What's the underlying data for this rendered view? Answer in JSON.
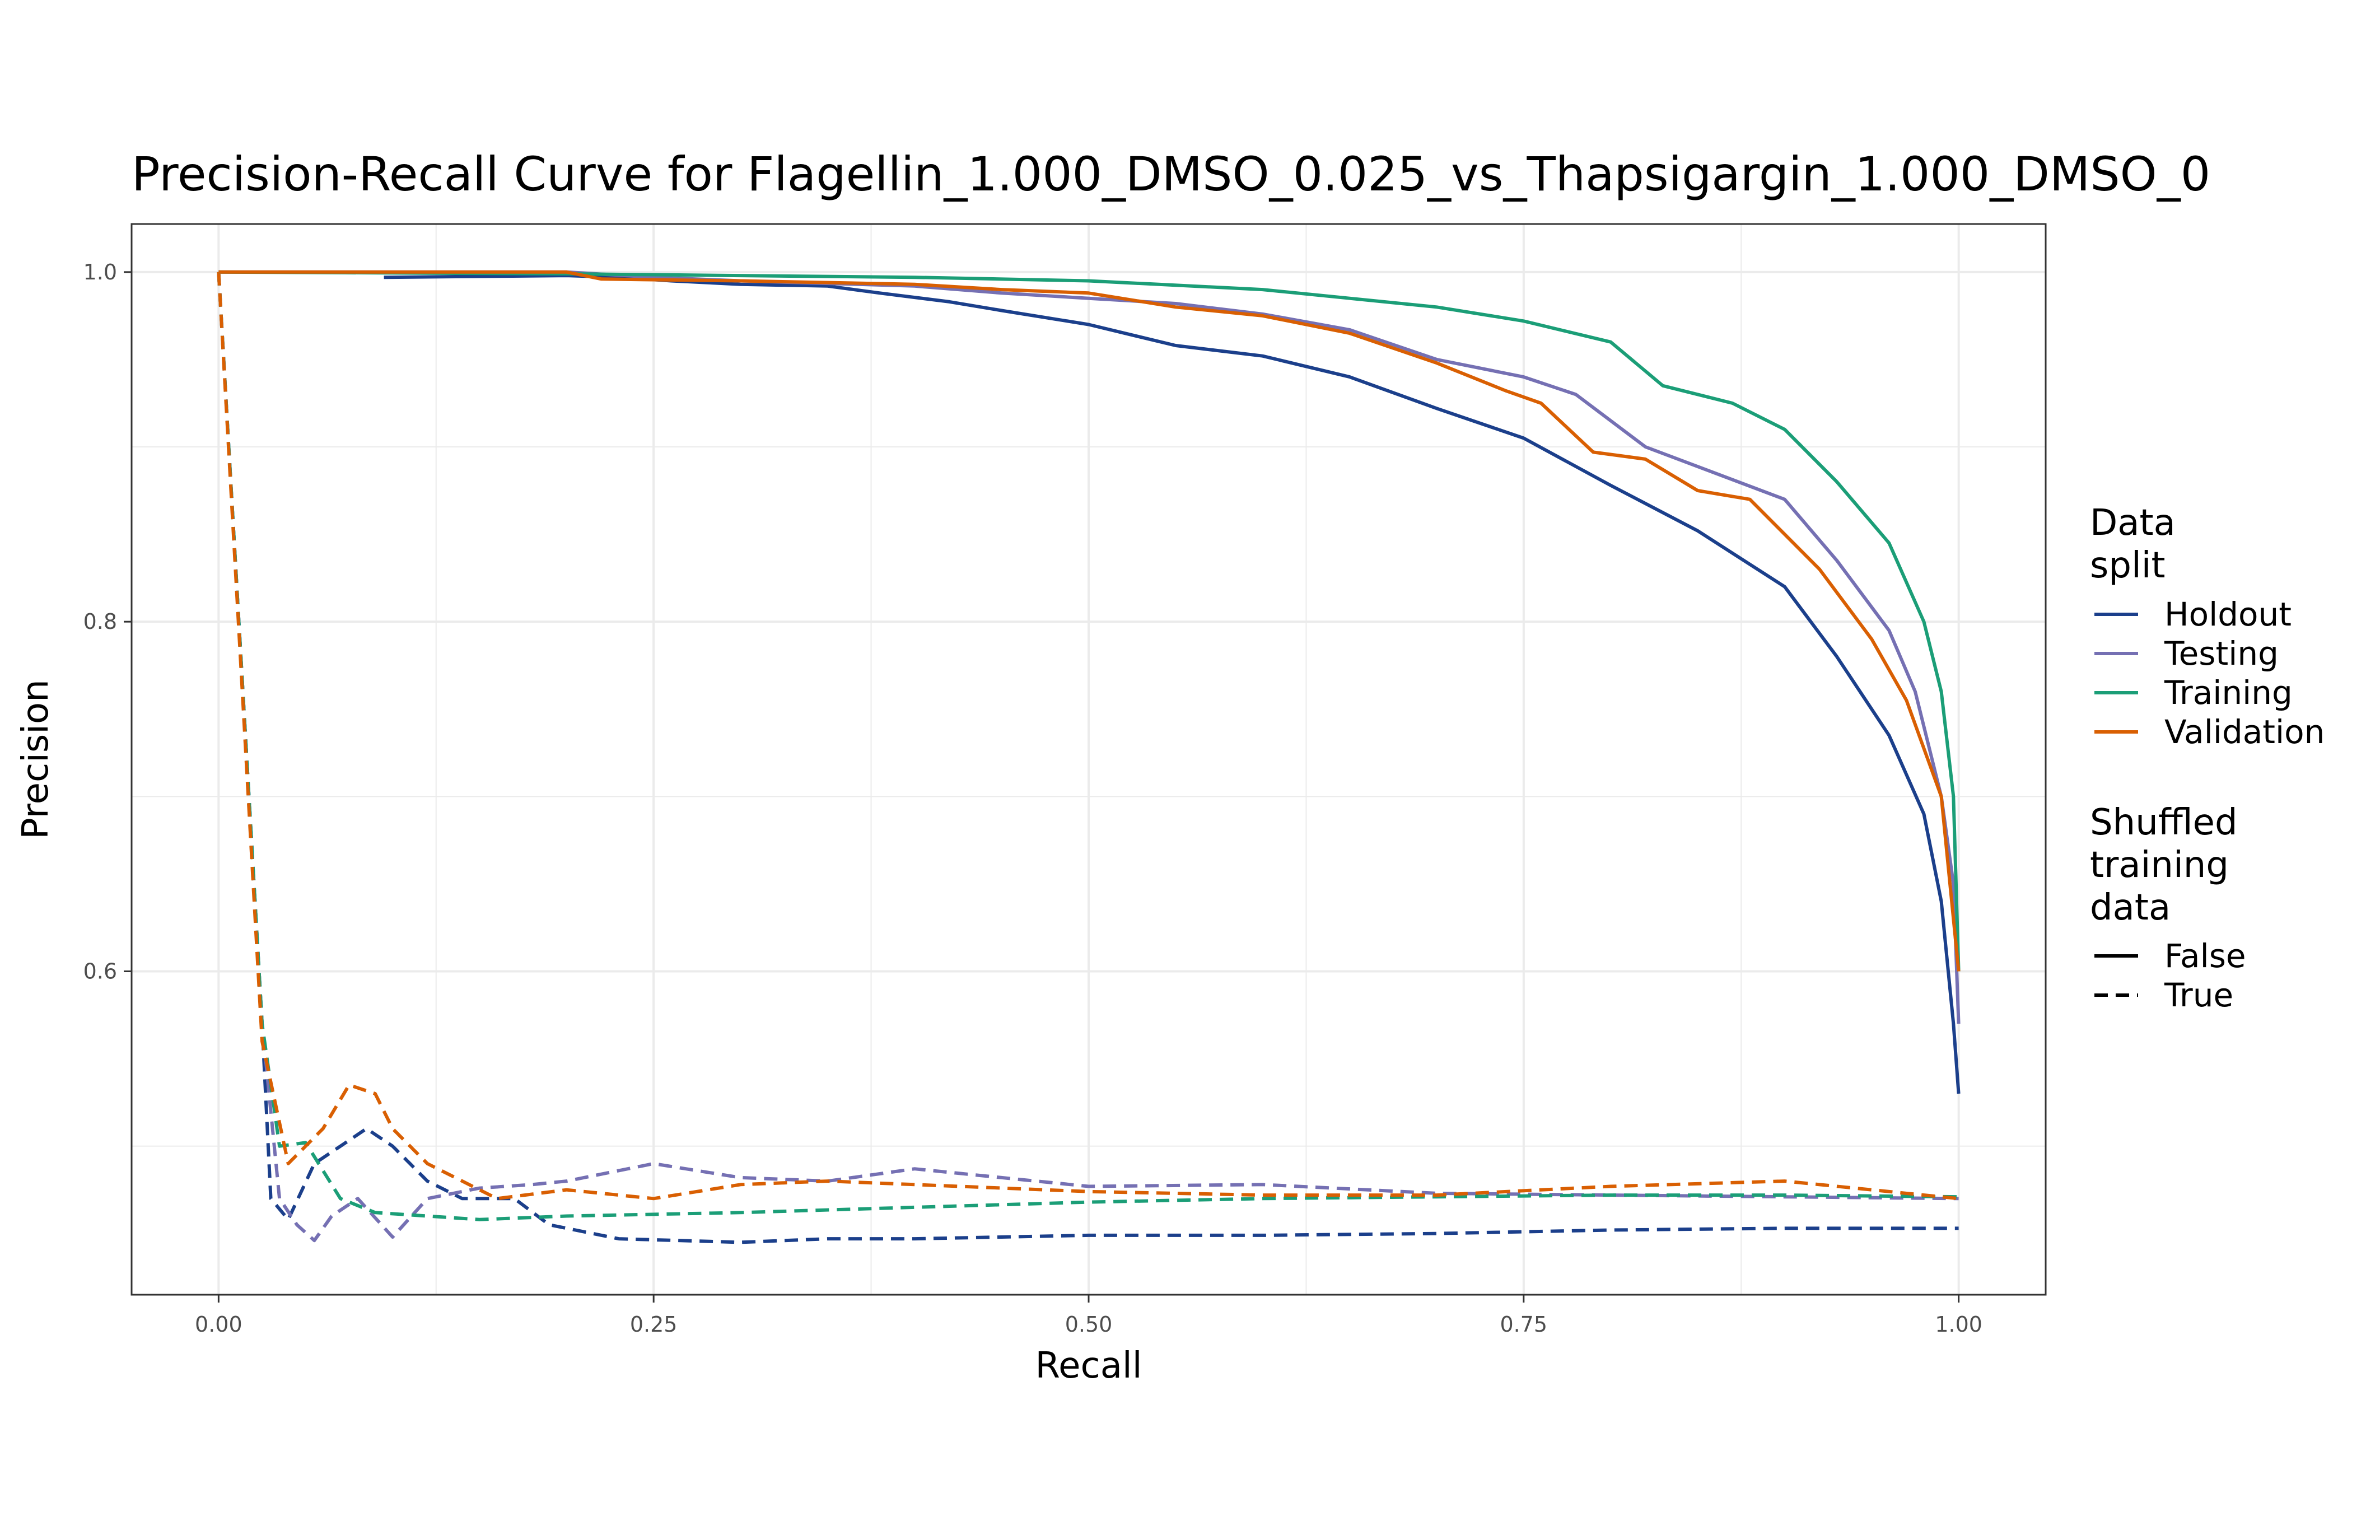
{
  "chart_data": {
    "type": "line",
    "title": "Precision-Recall Curve for Flagellin_1.000_DMSO_0.025_vs_Thapsigargin_1.000_DMSO_0",
    "xlabel": "Recall",
    "ylabel": "Precision",
    "xlim": [
      -0.05,
      1.05
    ],
    "ylim": [
      0.415,
      1.0275
    ],
    "x_ticks": [
      0.0,
      0.25,
      0.5,
      0.75,
      1.0
    ],
    "x_tick_labels": [
      "0.00",
      "0.25",
      "0.50",
      "0.75",
      "1.00"
    ],
    "y_ticks": [
      0.6,
      0.8,
      1.0
    ],
    "y_tick_labels": [
      "0.6",
      "0.8",
      "1.0"
    ],
    "grid": true,
    "legend": {
      "position": "right",
      "color_title": [
        "Data",
        "split"
      ],
      "linetype_title": [
        "Shuffled",
        "training",
        "data"
      ],
      "colors": [
        {
          "name": "Holdout",
          "color": "#1b3f8b"
        },
        {
          "name": "Testing",
          "color": "#7570b3"
        },
        {
          "name": "Training",
          "color": "#1b9e77"
        },
        {
          "name": "Validation",
          "color": "#d95f02"
        }
      ],
      "linetypes": [
        {
          "name": "False",
          "dash": "solid"
        },
        {
          "name": "True",
          "dash": "dashed"
        }
      ]
    },
    "series": [
      {
        "name": "Holdout",
        "shuffled": "False",
        "color": "#1b3f8b",
        "dash": "solid",
        "points": [
          [
            0.095,
            0.997
          ],
          [
            0.2,
            0.998
          ],
          [
            0.23,
            0.997
          ],
          [
            0.26,
            0.995
          ],
          [
            0.3,
            0.993
          ],
          [
            0.35,
            0.992
          ],
          [
            0.38,
            0.988
          ],
          [
            0.42,
            0.983
          ],
          [
            0.45,
            0.978
          ],
          [
            0.5,
            0.97
          ],
          [
            0.55,
            0.958
          ],
          [
            0.6,
            0.952
          ],
          [
            0.65,
            0.94
          ],
          [
            0.7,
            0.922
          ],
          [
            0.75,
            0.905
          ],
          [
            0.8,
            0.878
          ],
          [
            0.85,
            0.852
          ],
          [
            0.9,
            0.82
          ],
          [
            0.93,
            0.78
          ],
          [
            0.96,
            0.735
          ],
          [
            0.98,
            0.69
          ],
          [
            0.99,
            0.64
          ],
          [
            0.997,
            0.57
          ],
          [
            1.0,
            0.53
          ]
        ]
      },
      {
        "name": "Testing",
        "shuffled": "False",
        "color": "#7570b3",
        "dash": "solid",
        "points": [
          [
            0.0,
            1.0
          ],
          [
            0.2,
            1.0
          ],
          [
            0.25,
            0.997
          ],
          [
            0.3,
            0.995
          ],
          [
            0.4,
            0.992
          ],
          [
            0.45,
            0.988
          ],
          [
            0.5,
            0.985
          ],
          [
            0.55,
            0.982
          ],
          [
            0.6,
            0.976
          ],
          [
            0.65,
            0.967
          ],
          [
            0.7,
            0.95
          ],
          [
            0.75,
            0.94
          ],
          [
            0.78,
            0.93
          ],
          [
            0.82,
            0.9
          ],
          [
            0.86,
            0.885
          ],
          [
            0.9,
            0.87
          ],
          [
            0.93,
            0.835
          ],
          [
            0.96,
            0.795
          ],
          [
            0.975,
            0.76
          ],
          [
            0.99,
            0.7
          ],
          [
            0.997,
            0.65
          ],
          [
            1.0,
            0.57
          ]
        ]
      },
      {
        "name": "Training",
        "shuffled": "False",
        "color": "#1b9e77",
        "dash": "solid",
        "points": [
          [
            0.0,
            1.0
          ],
          [
            0.2,
            0.999
          ],
          [
            0.3,
            0.998
          ],
          [
            0.4,
            0.997
          ],
          [
            0.5,
            0.995
          ],
          [
            0.6,
            0.99
          ],
          [
            0.65,
            0.985
          ],
          [
            0.7,
            0.98
          ],
          [
            0.75,
            0.972
          ],
          [
            0.8,
            0.96
          ],
          [
            0.83,
            0.935
          ],
          [
            0.87,
            0.925
          ],
          [
            0.9,
            0.91
          ],
          [
            0.93,
            0.88
          ],
          [
            0.96,
            0.845
          ],
          [
            0.98,
            0.8
          ],
          [
            0.99,
            0.76
          ],
          [
            0.997,
            0.7
          ],
          [
            1.0,
            0.6
          ]
        ]
      },
      {
        "name": "Validation",
        "shuffled": "False",
        "color": "#d95f02",
        "dash": "solid",
        "points": [
          [
            0.0,
            1.0
          ],
          [
            0.2,
            1.0
          ],
          [
            0.22,
            0.996
          ],
          [
            0.3,
            0.995
          ],
          [
            0.4,
            0.993
          ],
          [
            0.45,
            0.99
          ],
          [
            0.5,
            0.988
          ],
          [
            0.55,
            0.98
          ],
          [
            0.6,
            0.975
          ],
          [
            0.65,
            0.965
          ],
          [
            0.7,
            0.948
          ],
          [
            0.74,
            0.932
          ],
          [
            0.76,
            0.925
          ],
          [
            0.79,
            0.897
          ],
          [
            0.82,
            0.893
          ],
          [
            0.85,
            0.875
          ],
          [
            0.88,
            0.87
          ],
          [
            0.92,
            0.83
          ],
          [
            0.95,
            0.79
          ],
          [
            0.97,
            0.755
          ],
          [
            0.99,
            0.7
          ],
          [
            1.0,
            0.6
          ]
        ]
      },
      {
        "name": "Holdout",
        "shuffled": "True",
        "color": "#1b3f8b",
        "dash": "dashed",
        "points": [
          [
            0.0,
            1.0
          ],
          [
            0.025,
            0.57
          ],
          [
            0.03,
            0.47
          ],
          [
            0.04,
            0.458
          ],
          [
            0.055,
            0.49
          ],
          [
            0.07,
            0.5
          ],
          [
            0.085,
            0.51
          ],
          [
            0.1,
            0.5
          ],
          [
            0.12,
            0.48
          ],
          [
            0.14,
            0.47
          ],
          [
            0.17,
            0.47
          ],
          [
            0.19,
            0.455
          ],
          [
            0.23,
            0.447
          ],
          [
            0.3,
            0.445
          ],
          [
            0.35,
            0.447
          ],
          [
            0.4,
            0.447
          ],
          [
            0.45,
            0.448
          ],
          [
            0.5,
            0.449
          ],
          [
            0.6,
            0.449
          ],
          [
            0.7,
            0.45
          ],
          [
            0.75,
            0.451
          ],
          [
            0.8,
            0.452
          ],
          [
            0.9,
            0.453
          ],
          [
            1.0,
            0.453
          ]
        ]
      },
      {
        "name": "Testing",
        "shuffled": "True",
        "color": "#7570b3",
        "dash": "dashed",
        "points": [
          [
            0.0,
            1.0
          ],
          [
            0.025,
            0.57
          ],
          [
            0.035,
            0.47
          ],
          [
            0.045,
            0.455
          ],
          [
            0.055,
            0.446
          ],
          [
            0.065,
            0.46
          ],
          [
            0.08,
            0.47
          ],
          [
            0.1,
            0.448
          ],
          [
            0.12,
            0.47
          ],
          [
            0.15,
            0.476
          ],
          [
            0.18,
            0.478
          ],
          [
            0.2,
            0.48
          ],
          [
            0.25,
            0.49
          ],
          [
            0.3,
            0.482
          ],
          [
            0.35,
            0.48
          ],
          [
            0.4,
            0.487
          ],
          [
            0.45,
            0.482
          ],
          [
            0.5,
            0.477
          ],
          [
            0.6,
            0.478
          ],
          [
            0.7,
            0.473
          ],
          [
            0.8,
            0.472
          ],
          [
            0.9,
            0.471
          ],
          [
            1.0,
            0.47
          ]
        ]
      },
      {
        "name": "Training",
        "shuffled": "True",
        "color": "#1b9e77",
        "dash": "dashed",
        "points": [
          [
            0.0,
            1.0
          ],
          [
            0.025,
            0.57
          ],
          [
            0.035,
            0.5
          ],
          [
            0.05,
            0.502
          ],
          [
            0.07,
            0.47
          ],
          [
            0.09,
            0.462
          ],
          [
            0.12,
            0.46
          ],
          [
            0.15,
            0.458
          ],
          [
            0.2,
            0.46
          ],
          [
            0.3,
            0.462
          ],
          [
            0.4,
            0.465
          ],
          [
            0.5,
            0.468
          ],
          [
            0.6,
            0.47
          ],
          [
            0.7,
            0.471
          ],
          [
            0.8,
            0.472
          ],
          [
            0.9,
            0.472
          ],
          [
            1.0,
            0.471
          ]
        ]
      },
      {
        "name": "Validation",
        "shuffled": "True",
        "color": "#d95f02",
        "dash": "dashed",
        "points": [
          [
            0.0,
            1.0
          ],
          [
            0.025,
            0.56
          ],
          [
            0.04,
            0.49
          ],
          [
            0.06,
            0.51
          ],
          [
            0.075,
            0.535
          ],
          [
            0.09,
            0.53
          ],
          [
            0.1,
            0.51
          ],
          [
            0.12,
            0.49
          ],
          [
            0.14,
            0.48
          ],
          [
            0.16,
            0.47
          ],
          [
            0.2,
            0.475
          ],
          [
            0.25,
            0.47
          ],
          [
            0.3,
            0.478
          ],
          [
            0.35,
            0.48
          ],
          [
            0.4,
            0.478
          ],
          [
            0.5,
            0.474
          ],
          [
            0.6,
            0.472
          ],
          [
            0.7,
            0.472
          ],
          [
            0.8,
            0.477
          ],
          [
            0.9,
            0.48
          ],
          [
            1.0,
            0.47
          ]
        ]
      }
    ]
  }
}
